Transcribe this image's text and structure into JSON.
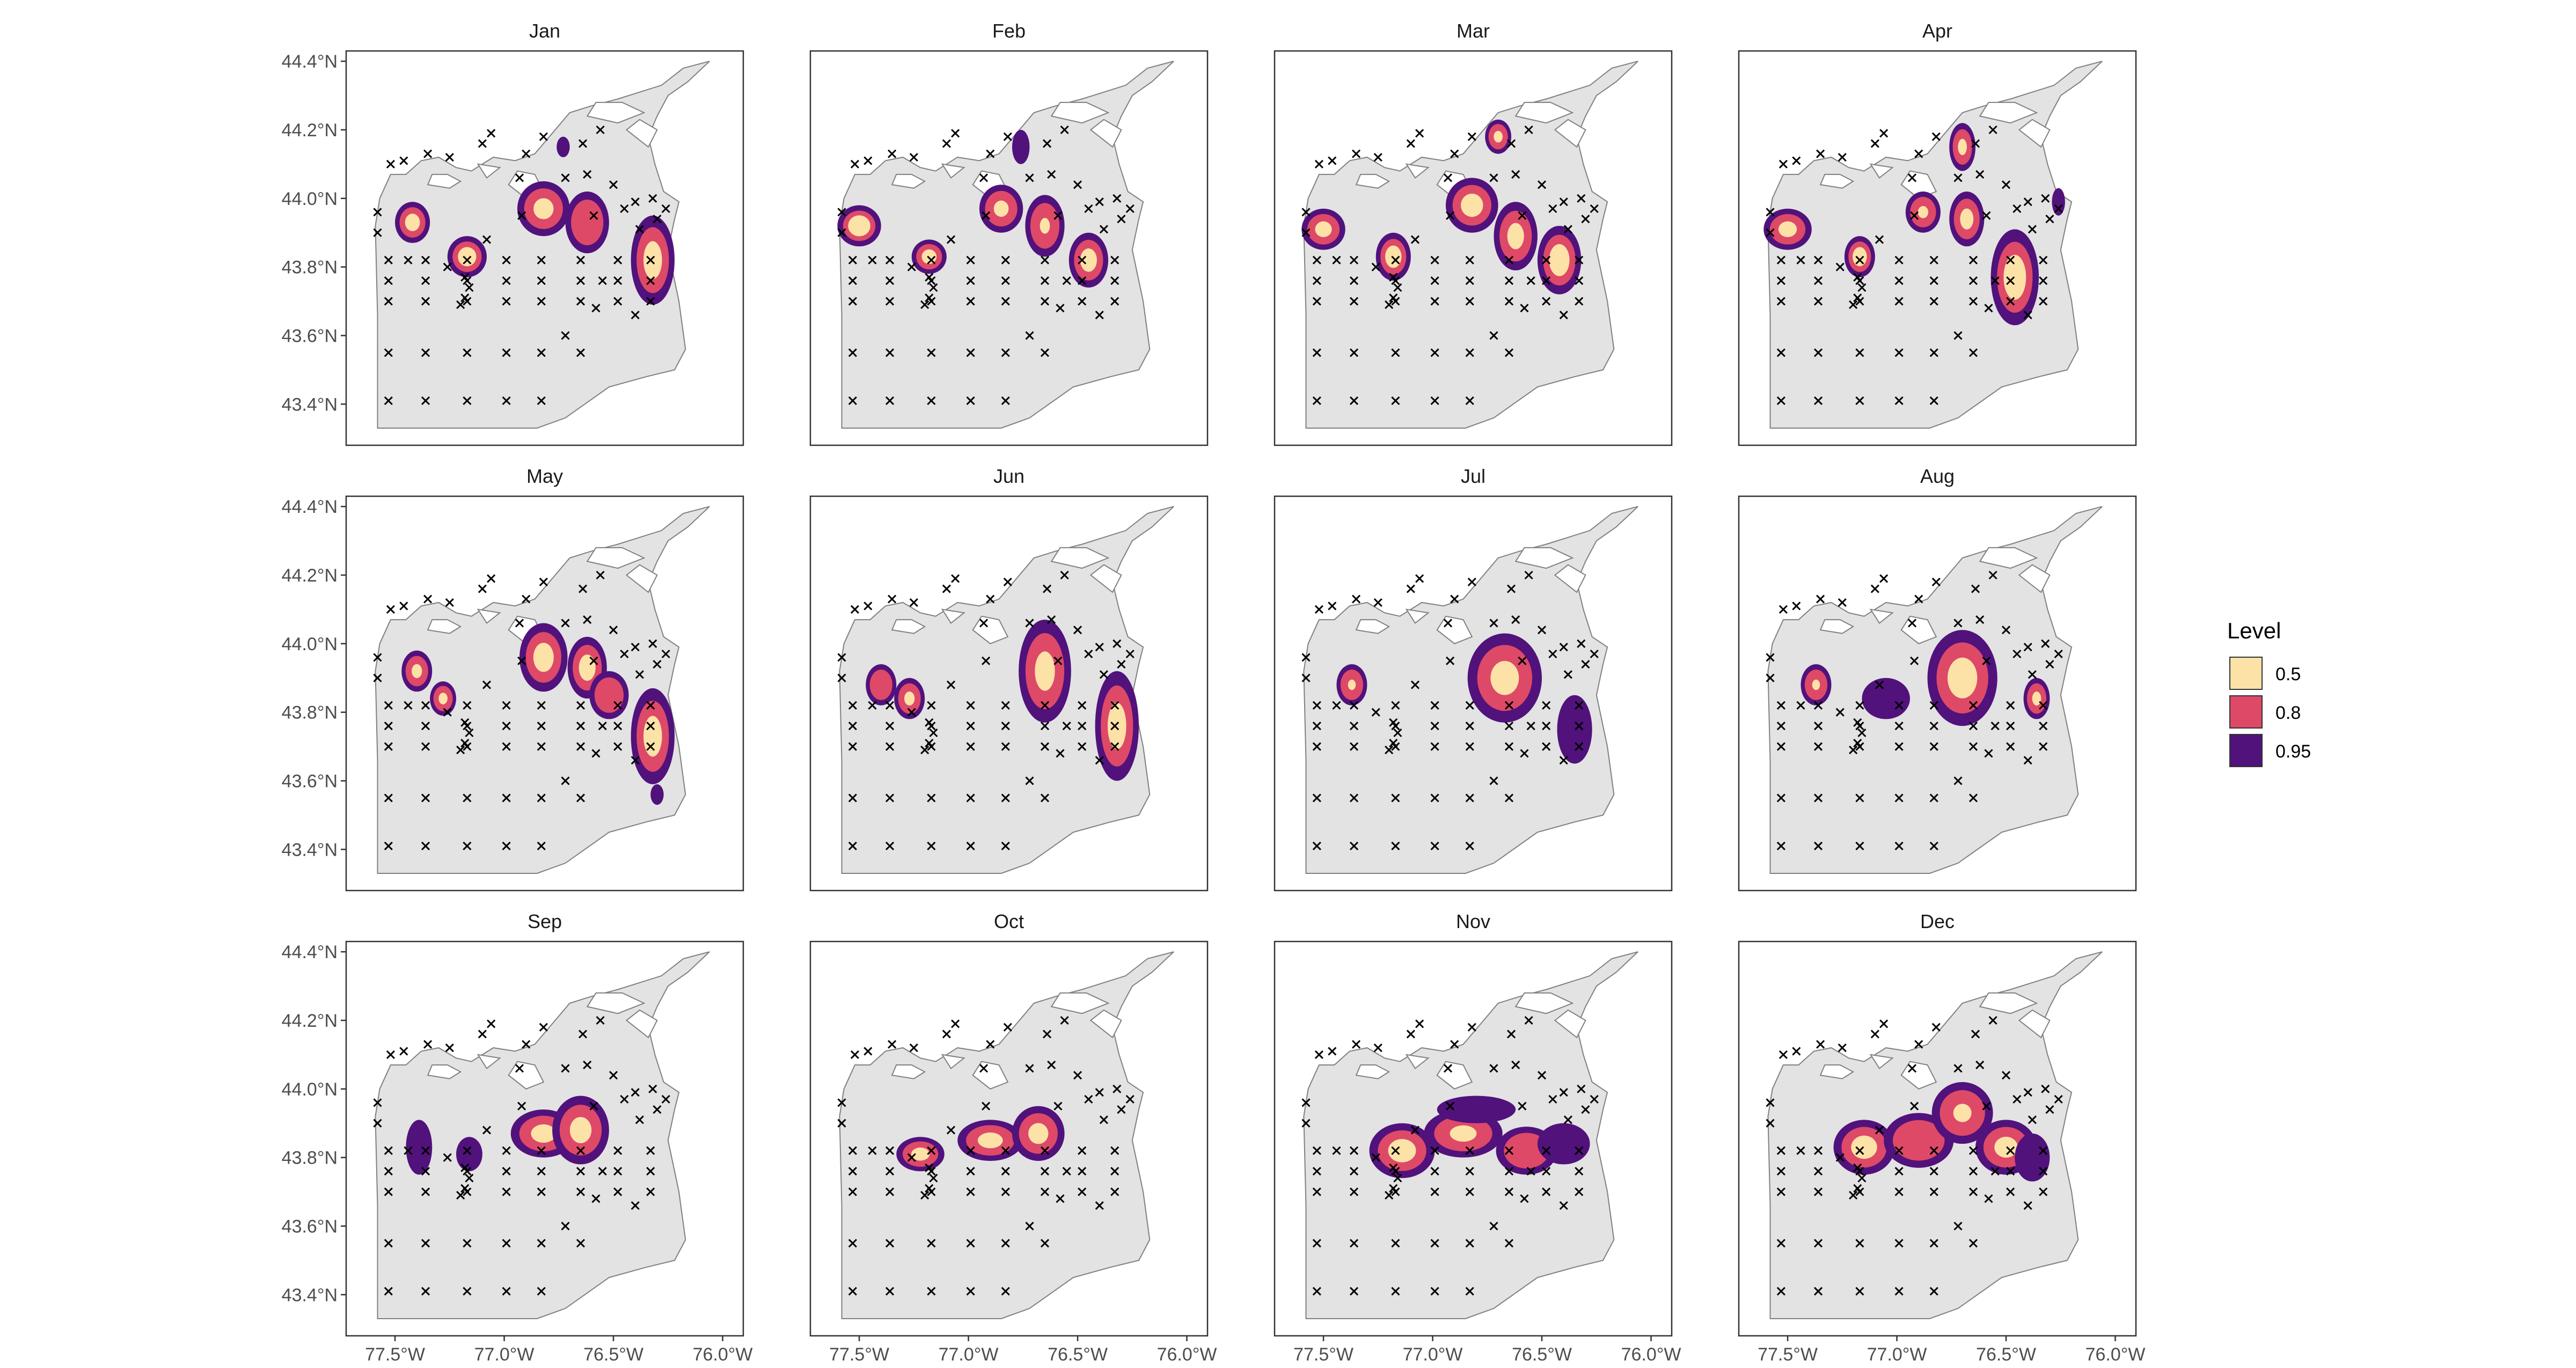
{
  "chart_data": {
    "type": "contour-map-facets",
    "description_none": "",
    "x_ticks": [
      "77.5°W",
      "77.0°W",
      "76.5°W",
      "76.0°W"
    ],
    "x_tick_values": [
      -77.5,
      -77.0,
      -76.5,
      -76.0
    ],
    "y_ticks": [
      "44.4°N",
      "44.2°N",
      "44.0°N",
      "43.8°N",
      "43.6°N",
      "43.4°N"
    ],
    "y_tick_values": [
      44.4,
      44.2,
      44.0,
      43.8,
      43.6,
      43.4
    ],
    "xlim": [
      -77.65,
      -75.93
    ],
    "ylim": [
      43.28,
      44.43
    ],
    "legend": {
      "title": "Level",
      "placement": "right",
      "items": [
        {
          "label": "0.5",
          "color": "#FDE2A7"
        },
        {
          "label": "0.8",
          "color": "#DE4968"
        },
        {
          "label": "0.95",
          "color": "#51127C"
        }
      ]
    },
    "colors": {
      "lake": "#E3E3E3",
      "shore": "#808080",
      "level_0_5": "#FDE2A7",
      "level_0_8": "#DE4968",
      "level_0_95": "#51127C",
      "station": "#000000"
    },
    "panels": [
      {
        "title": "Jan",
        "blobs": [
          {
            "lon": -77.42,
            "lat": 43.93,
            "rx": 0.08,
            "ry": 0.06,
            "core": 0.5
          },
          {
            "lon": -77.17,
            "lat": 43.83,
            "rx": 0.09,
            "ry": 0.06,
            "core": 0.55
          },
          {
            "lon": -76.82,
            "lat": 43.97,
            "rx": 0.12,
            "ry": 0.08,
            "core": 0.45
          },
          {
            "lon": -76.62,
            "lat": 43.93,
            "rx": 0.1,
            "ry": 0.09,
            "core": 0.0
          },
          {
            "lon": -76.32,
            "lat": 43.82,
            "rx": 0.1,
            "ry": 0.13,
            "core": 0.5
          },
          {
            "lon": -76.73,
            "lat": 44.15,
            "rx": 0.03,
            "ry": 0.03,
            "level": 0.95
          }
        ]
      },
      {
        "title": "Feb",
        "blobs": [
          {
            "lon": -77.5,
            "lat": 43.92,
            "rx": 0.1,
            "ry": 0.06,
            "core": 0.6
          },
          {
            "lon": -77.18,
            "lat": 43.83,
            "rx": 0.08,
            "ry": 0.05,
            "core": 0.5
          },
          {
            "lon": -76.85,
            "lat": 43.97,
            "rx": 0.1,
            "ry": 0.07,
            "core": 0.4
          },
          {
            "lon": -76.65,
            "lat": 43.92,
            "rx": 0.09,
            "ry": 0.09,
            "core": 0.3
          },
          {
            "lon": -76.45,
            "lat": 43.82,
            "rx": 0.09,
            "ry": 0.08,
            "core": 0.5
          },
          {
            "lon": -76.76,
            "lat": 44.15,
            "rx": 0.04,
            "ry": 0.05,
            "level": 0.95
          }
        ]
      },
      {
        "title": "Mar",
        "blobs": [
          {
            "lon": -77.5,
            "lat": 43.91,
            "rx": 0.1,
            "ry": 0.06,
            "core": 0.45
          },
          {
            "lon": -77.18,
            "lat": 43.83,
            "rx": 0.08,
            "ry": 0.07,
            "core": 0.55
          },
          {
            "lon": -76.82,
            "lat": 43.98,
            "rx": 0.12,
            "ry": 0.08,
            "core": 0.5
          },
          {
            "lon": -76.62,
            "lat": 43.89,
            "rx": 0.1,
            "ry": 0.1,
            "core": 0.45
          },
          {
            "lon": -76.42,
            "lat": 43.82,
            "rx": 0.1,
            "ry": 0.1,
            "core": 0.55
          },
          {
            "lon": -76.7,
            "lat": 44.18,
            "rx": 0.06,
            "ry": 0.05,
            "core": 0.4
          }
        ]
      },
      {
        "title": "Apr",
        "blobs": [
          {
            "lon": -77.5,
            "lat": 43.91,
            "rx": 0.11,
            "ry": 0.06,
            "core": 0.45
          },
          {
            "lon": -77.17,
            "lat": 43.83,
            "rx": 0.07,
            "ry": 0.06,
            "core": 0.55
          },
          {
            "lon": -76.88,
            "lat": 43.96,
            "rx": 0.08,
            "ry": 0.06,
            "core": 0.35
          },
          {
            "lon": -76.68,
            "lat": 43.94,
            "rx": 0.08,
            "ry": 0.08,
            "core": 0.45
          },
          {
            "lon": -76.46,
            "lat": 43.77,
            "rx": 0.11,
            "ry": 0.14,
            "core": 0.55
          },
          {
            "lon": -76.7,
            "lat": 44.15,
            "rx": 0.06,
            "ry": 0.07,
            "core": 0.4
          },
          {
            "lon": -76.26,
            "lat": 43.99,
            "rx": 0.03,
            "ry": 0.04,
            "level": 0.95
          }
        ]
      },
      {
        "title": "May",
        "blobs": [
          {
            "lon": -77.4,
            "lat": 43.92,
            "rx": 0.07,
            "ry": 0.06,
            "core": 0.4
          },
          {
            "lon": -77.28,
            "lat": 43.84,
            "rx": 0.06,
            "ry": 0.05,
            "core": 0.4
          },
          {
            "lon": -76.82,
            "lat": 43.96,
            "rx": 0.11,
            "ry": 0.1,
            "core": 0.5
          },
          {
            "lon": -76.62,
            "lat": 43.93,
            "rx": 0.09,
            "ry": 0.09,
            "core": 0.5
          },
          {
            "lon": -76.52,
            "lat": 43.85,
            "rx": 0.09,
            "ry": 0.07,
            "core": 0.0
          },
          {
            "lon": -76.32,
            "lat": 43.73,
            "rx": 0.1,
            "ry": 0.14,
            "core": 0.5
          },
          {
            "lon": -76.3,
            "lat": 43.56,
            "rx": 0.03,
            "ry": 0.03,
            "level": 0.95
          }
        ]
      },
      {
        "title": "Jun",
        "blobs": [
          {
            "lon": -77.4,
            "lat": 43.88,
            "rx": 0.07,
            "ry": 0.06,
            "core": 0.0
          },
          {
            "lon": -77.27,
            "lat": 43.84,
            "rx": 0.07,
            "ry": 0.06,
            "core": 0.4
          },
          {
            "lon": -76.65,
            "lat": 43.92,
            "rx": 0.12,
            "ry": 0.15,
            "core": 0.45
          },
          {
            "lon": -76.32,
            "lat": 43.76,
            "rx": 0.1,
            "ry": 0.16,
            "core": 0.5
          }
        ]
      },
      {
        "title": "Jul",
        "blobs": [
          {
            "lon": -77.37,
            "lat": 43.88,
            "rx": 0.07,
            "ry": 0.06,
            "core": 0.3
          },
          {
            "lon": -76.67,
            "lat": 43.9,
            "rx": 0.17,
            "ry": 0.13,
            "core": 0.45
          },
          {
            "lon": -76.35,
            "lat": 43.75,
            "rx": 0.08,
            "ry": 0.1,
            "level": 0.95
          }
        ]
      },
      {
        "title": "Aug",
        "blobs": [
          {
            "lon": -77.37,
            "lat": 43.88,
            "rx": 0.07,
            "ry": 0.06,
            "core": 0.3
          },
          {
            "lon": -77.05,
            "lat": 43.84,
            "rx": 0.11,
            "ry": 0.06,
            "level": 0.95
          },
          {
            "lon": -76.7,
            "lat": 43.9,
            "rx": 0.16,
            "ry": 0.14,
            "core": 0.5
          },
          {
            "lon": -76.36,
            "lat": 43.84,
            "rx": 0.06,
            "ry": 0.06,
            "core": 0.4
          }
        ]
      },
      {
        "title": "Sep",
        "blobs": [
          {
            "lon": -77.39,
            "lat": 43.83,
            "rx": 0.06,
            "ry": 0.08,
            "level": 0.95
          },
          {
            "lon": -77.16,
            "lat": 43.81,
            "rx": 0.06,
            "ry": 0.05,
            "level": 0.95
          },
          {
            "lon": -76.82,
            "lat": 43.87,
            "rx": 0.15,
            "ry": 0.07,
            "core": 0.45
          },
          {
            "lon": -76.65,
            "lat": 43.88,
            "rx": 0.13,
            "ry": 0.1,
            "core": 0.45
          }
        ]
      },
      {
        "title": "Oct",
        "blobs": [
          {
            "lon": -77.22,
            "lat": 43.81,
            "rx": 0.11,
            "ry": 0.05,
            "core": 0.45
          },
          {
            "lon": -76.9,
            "lat": 43.85,
            "rx": 0.15,
            "ry": 0.06,
            "core": 0.45
          },
          {
            "lon": -76.68,
            "lat": 43.87,
            "rx": 0.12,
            "ry": 0.08,
            "core": 0.45
          }
        ]
      },
      {
        "title": "Nov",
        "blobs": [
          {
            "lon": -77.14,
            "lat": 43.82,
            "rx": 0.15,
            "ry": 0.08,
            "core": 0.5
          },
          {
            "lon": -76.86,
            "lat": 43.87,
            "rx": 0.18,
            "ry": 0.07,
            "core": 0.4
          },
          {
            "lon": -76.57,
            "lat": 43.82,
            "rx": 0.14,
            "ry": 0.07,
            "core": 0.0
          },
          {
            "lon": -76.4,
            "lat": 43.84,
            "rx": 0.12,
            "ry": 0.06,
            "level": 0.95
          },
          {
            "lon": -76.8,
            "lat": 43.94,
            "rx": 0.18,
            "ry": 0.04,
            "level": 0.95
          }
        ]
      },
      {
        "title": "Dec",
        "blobs": [
          {
            "lon": -77.15,
            "lat": 43.83,
            "rx": 0.14,
            "ry": 0.08,
            "core": 0.5
          },
          {
            "lon": -76.9,
            "lat": 43.85,
            "rx": 0.16,
            "ry": 0.08,
            "core": 0.0
          },
          {
            "lon": -76.7,
            "lat": 43.93,
            "rx": 0.14,
            "ry": 0.09,
            "core": 0.35
          },
          {
            "lon": -76.5,
            "lat": 43.83,
            "rx": 0.14,
            "ry": 0.08,
            "core": 0.45
          },
          {
            "lon": -76.38,
            "lat": 43.8,
            "rx": 0.08,
            "ry": 0.07,
            "level": 0.95
          }
        ]
      }
    ]
  }
}
